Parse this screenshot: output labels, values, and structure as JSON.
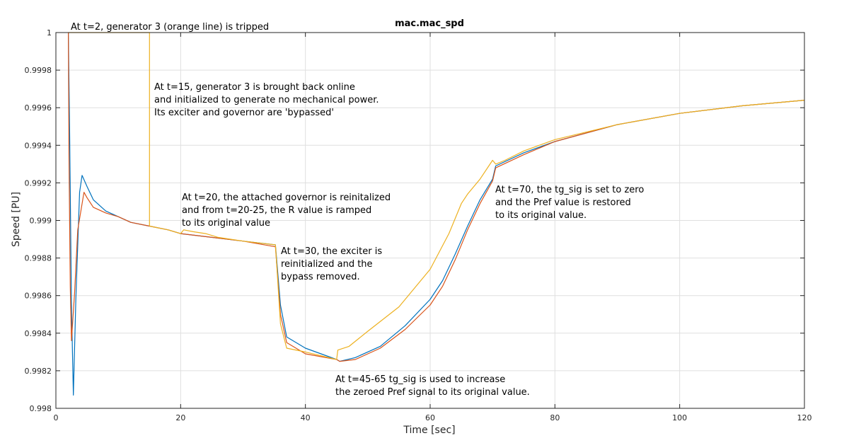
{
  "chart_data": {
    "type": "line",
    "title": "mac.mac_spd",
    "xlabel": "Time [sec]",
    "ylabel": "Speed [PU]",
    "xlim": [
      0,
      120
    ],
    "ylim": [
      0.998,
      1.0
    ],
    "xticks": [
      0,
      20,
      40,
      60,
      80,
      100,
      120
    ],
    "yticks": [
      0.998,
      0.9982,
      0.9984,
      0.9986,
      0.9988,
      0.999,
      0.9992,
      0.9994,
      0.9996,
      0.9998,
      1
    ],
    "xtick_labels": [
      "0",
      "20",
      "40",
      "60",
      "80",
      "100",
      "120"
    ],
    "ytick_labels": [
      "0.998",
      "0.9982",
      "0.9984",
      "0.9986",
      "0.9988",
      "0.999",
      "0.9992",
      "0.9994",
      "0.9996",
      "0.9998",
      "1"
    ],
    "grid": true,
    "series": [
      {
        "color": "#0072BD",
        "points": [
          [
            2,
            1.0
          ],
          [
            2.2,
            0.99948
          ],
          [
            2.5,
            0.99855
          ],
          [
            2.8,
            0.99807
          ],
          [
            3.2,
            0.99858
          ],
          [
            3.8,
            0.99915
          ],
          [
            4.2,
            0.99924
          ],
          [
            5,
            0.99918
          ],
          [
            6,
            0.99911
          ],
          [
            8,
            0.99905
          ],
          [
            10,
            0.99902
          ],
          [
            12,
            0.99899
          ],
          [
            15,
            0.99897
          ],
          [
            18,
            0.99895
          ],
          [
            20,
            0.99893
          ],
          [
            25,
            0.99891
          ],
          [
            30,
            0.99889
          ],
          [
            35.2,
            0.99887
          ],
          [
            36,
            0.99855
          ],
          [
            37,
            0.99838
          ],
          [
            40,
            0.99832
          ],
          [
            45,
            0.99826
          ],
          [
            45.5,
            0.99825
          ],
          [
            48,
            0.99827
          ],
          [
            52,
            0.99833
          ],
          [
            56,
            0.99844
          ],
          [
            60,
            0.99858
          ],
          [
            62,
            0.99868
          ],
          [
            64,
            0.99882
          ],
          [
            66,
            0.99897
          ],
          [
            68,
            0.99911
          ],
          [
            70,
            0.99922
          ],
          [
            70.5,
            0.99929
          ],
          [
            75,
            0.99936
          ],
          [
            80,
            0.99942
          ],
          [
            90,
            0.99951
          ],
          [
            100,
            0.99957
          ],
          [
            110,
            0.99961
          ],
          [
            120,
            0.99964
          ]
        ]
      },
      {
        "color": "#D95319",
        "points": [
          [
            2,
            1.0
          ],
          [
            2.1,
            0.99935
          ],
          [
            2.3,
            0.99865
          ],
          [
            2.5,
            0.99836
          ],
          [
            3,
            0.99862
          ],
          [
            3.5,
            0.99895
          ],
          [
            4.5,
            0.99915
          ],
          [
            5,
            0.99912
          ],
          [
            6,
            0.99907
          ],
          [
            8,
            0.99904
          ],
          [
            10,
            0.99902
          ],
          [
            12,
            0.99899
          ],
          [
            15,
            0.99897
          ],
          [
            18,
            0.99895
          ],
          [
            20,
            0.99893
          ],
          [
            25,
            0.99891
          ],
          [
            30,
            0.99889
          ],
          [
            35.2,
            0.99886
          ],
          [
            36,
            0.9985
          ],
          [
            37,
            0.99835
          ],
          [
            40,
            0.99829
          ],
          [
            45,
            0.99826
          ],
          [
            45.5,
            0.99825
          ],
          [
            48,
            0.99826
          ],
          [
            52,
            0.99832
          ],
          [
            56,
            0.99842
          ],
          [
            60,
            0.99855
          ],
          [
            62,
            0.99865
          ],
          [
            64,
            0.99879
          ],
          [
            66,
            0.99895
          ],
          [
            68,
            0.99909
          ],
          [
            70,
            0.99921
          ],
          [
            70.5,
            0.99928
          ],
          [
            75,
            0.99935
          ],
          [
            80,
            0.99942
          ],
          [
            90,
            0.99951
          ],
          [
            100,
            0.99957
          ],
          [
            110,
            0.99961
          ],
          [
            120,
            0.99964
          ]
        ]
      },
      {
        "color": "#EDB120",
        "points": [
          [
            2,
            1.0
          ],
          [
            15,
            1.0
          ],
          [
            15.01,
            0.99897
          ],
          [
            18,
            0.99895
          ],
          [
            20,
            0.99893
          ],
          [
            20.5,
            0.99895
          ],
          [
            22,
            0.99894
          ],
          [
            24,
            0.99893
          ],
          [
            25,
            0.99892
          ],
          [
            26,
            0.99891
          ],
          [
            30,
            0.99889
          ],
          [
            35.2,
            0.99887
          ],
          [
            36,
            0.99845
          ],
          [
            37,
            0.99832
          ],
          [
            40,
            0.9983
          ],
          [
            45,
            0.99826
          ],
          [
            45.2,
            0.99831
          ],
          [
            47,
            0.99833
          ],
          [
            50,
            0.99841
          ],
          [
            55,
            0.99854
          ],
          [
            60,
            0.99874
          ],
          [
            63,
            0.99893
          ],
          [
            65,
            0.99909
          ],
          [
            66,
            0.99914
          ],
          [
            68,
            0.99922
          ],
          [
            70,
            0.99932
          ],
          [
            70.5,
            0.9993
          ],
          [
            72,
            0.99932
          ],
          [
            75,
            0.99937
          ],
          [
            80,
            0.99943
          ],
          [
            90,
            0.99951
          ],
          [
            100,
            0.99957
          ],
          [
            110,
            0.99961
          ],
          [
            120,
            0.99964
          ]
        ]
      }
    ],
    "annotations": [
      {
        "lines": [
          "At t=2, generator 3 (orange line) is tripped"
        ]
      },
      {
        "lines": [
          "At t=15, generator 3 is brought back online",
          "and initialized to generate no mechanical power.",
          "Its exciter and governor are 'bypassed'"
        ]
      },
      {
        "lines": [
          "At t=20, the attached governor is reinitalized",
          "and from t=20-25, the R value is ramped",
          "to its original value"
        ]
      },
      {
        "lines": [
          "At t=30, the exciter is",
          "reinitialized and the",
          "bypass removed."
        ]
      },
      {
        "lines": [
          "At t=70, the tg_sig is set to zero",
          "and the Pref value is restored",
          "to its original value."
        ]
      },
      {
        "lines": [
          "At t=45-65 tg_sig is used to increase",
          "the zeroed Pref signal to its original value."
        ]
      }
    ]
  }
}
